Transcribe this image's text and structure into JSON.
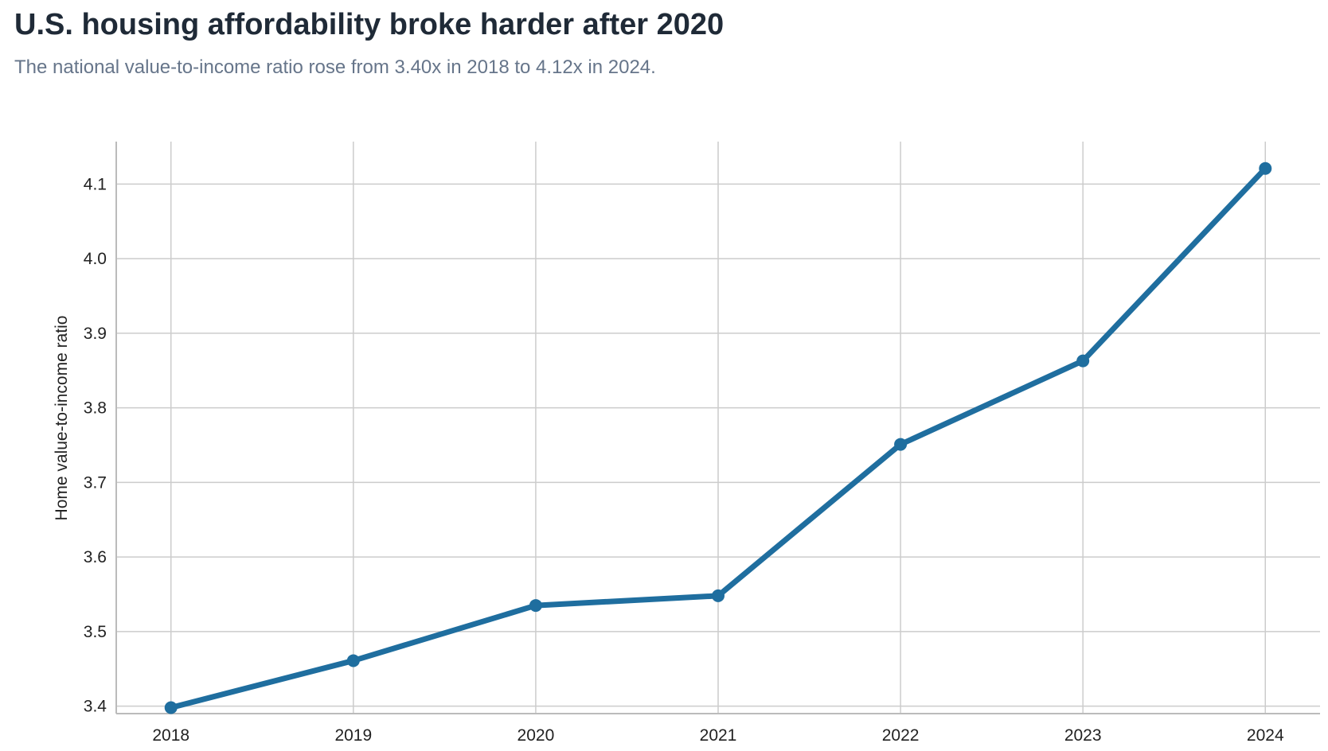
{
  "header": {
    "title": "U.S. housing affordability broke harder after 2020",
    "subtitle": "The national value-to-income ratio rose from 3.40x in 2018 to 4.12x in 2024."
  },
  "colors": {
    "line": "#1f6e9f",
    "grid": "#cccccc",
    "axis": "#bbbbbb",
    "title": "#1f2a37",
    "subtitle": "#66758a"
  },
  "chart_data": {
    "type": "line",
    "title": "U.S. housing affordability broke harder after 2020",
    "subtitle": "The national value-to-income ratio rose from 3.40x in 2018 to 4.12x in 2024.",
    "xlabel": "",
    "ylabel": "Home value-to-income ratio",
    "x": [
      "2018",
      "2019",
      "2020",
      "2021",
      "2022",
      "2023",
      "2024"
    ],
    "series": [
      {
        "values": [
          3.398,
          3.461,
          3.535,
          3.548,
          3.751,
          3.863,
          4.121
        ]
      }
    ],
    "yticks": [
      "3.4",
      "3.5",
      "3.6",
      "3.7",
      "3.8",
      "3.9",
      "4.0",
      "4.1"
    ],
    "xlim": [
      2017.7,
      2024.3
    ],
    "ylim": [
      3.39,
      4.157
    ],
    "grid": true,
    "legend": "none",
    "markers": true
  }
}
